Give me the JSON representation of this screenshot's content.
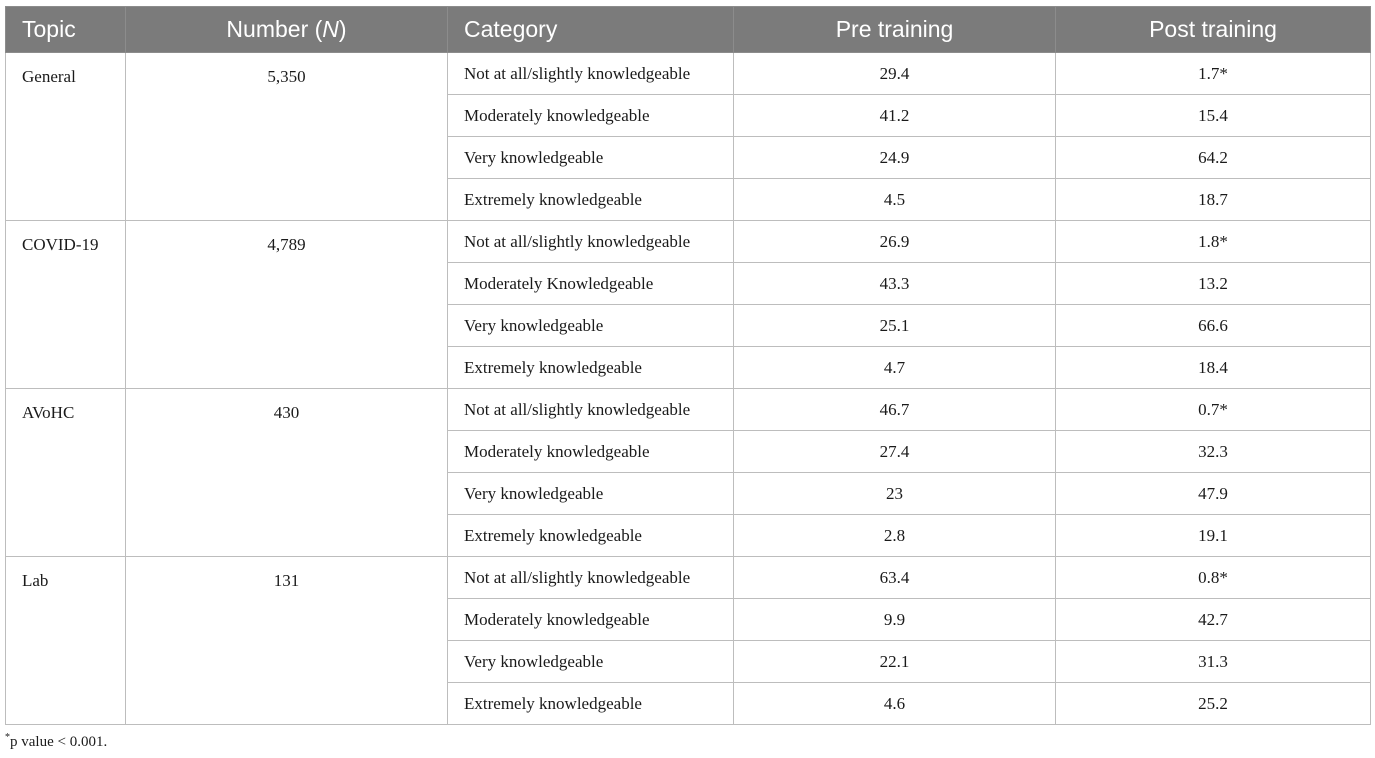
{
  "headers": {
    "topic": "Topic",
    "number": "Number (",
    "number_italic": "N",
    "number_end": ")",
    "category": "Category",
    "pre": "Pre training",
    "post": "Post training"
  },
  "groups": [
    {
      "topic": "General",
      "number": "5,350",
      "rows": [
        {
          "category": "Not at all/slightly knowledgeable",
          "pre": "29.4",
          "post": "1.7*"
        },
        {
          "category": "Moderately knowledgeable",
          "pre": "41.2",
          "post": "15.4"
        },
        {
          "category": "Very knowledgeable",
          "pre": "24.9",
          "post": "64.2"
        },
        {
          "category": "Extremely knowledgeable",
          "pre": "4.5",
          "post": "18.7"
        }
      ]
    },
    {
      "topic": "COVID-19",
      "number": "4,789",
      "rows": [
        {
          "category": "Not at all/slightly knowledgeable",
          "pre": "26.9",
          "post": "1.8*"
        },
        {
          "category": "Moderately Knowledgeable",
          "pre": "43.3",
          "post": "13.2"
        },
        {
          "category": "Very knowledgeable",
          "pre": "25.1",
          "post": "66.6"
        },
        {
          "category": "Extremely knowledgeable",
          "pre": "4.7",
          "post": "18.4"
        }
      ]
    },
    {
      "topic": "AVoHC",
      "number": "430",
      "rows": [
        {
          "category": "Not at all/slightly knowledgeable",
          "pre": "46.7",
          "post": "0.7*"
        },
        {
          "category": "Moderately knowledgeable",
          "pre": "27.4",
          "post": "32.3"
        },
        {
          "category": "Very knowledgeable",
          "pre": "23",
          "post": "47.9"
        },
        {
          "category": "Extremely knowledgeable",
          "pre": "2.8",
          "post": "19.1"
        }
      ]
    },
    {
      "topic": "Lab",
      "number": "131",
      "rows": [
        {
          "category": "Not at all/slightly knowledgeable",
          "pre": "63.4",
          "post": "0.8*"
        },
        {
          "category": "Moderately knowledgeable",
          "pre": "9.9",
          "post": "42.7"
        },
        {
          "category": "Very knowledgeable",
          "pre": "22.1",
          "post": "31.3"
        },
        {
          "category": "Extremely knowledgeable",
          "pre": "4.6",
          "post": "25.2"
        }
      ]
    }
  ],
  "footnote": {
    "marker": "*",
    "text": "p value < 0.001."
  }
}
